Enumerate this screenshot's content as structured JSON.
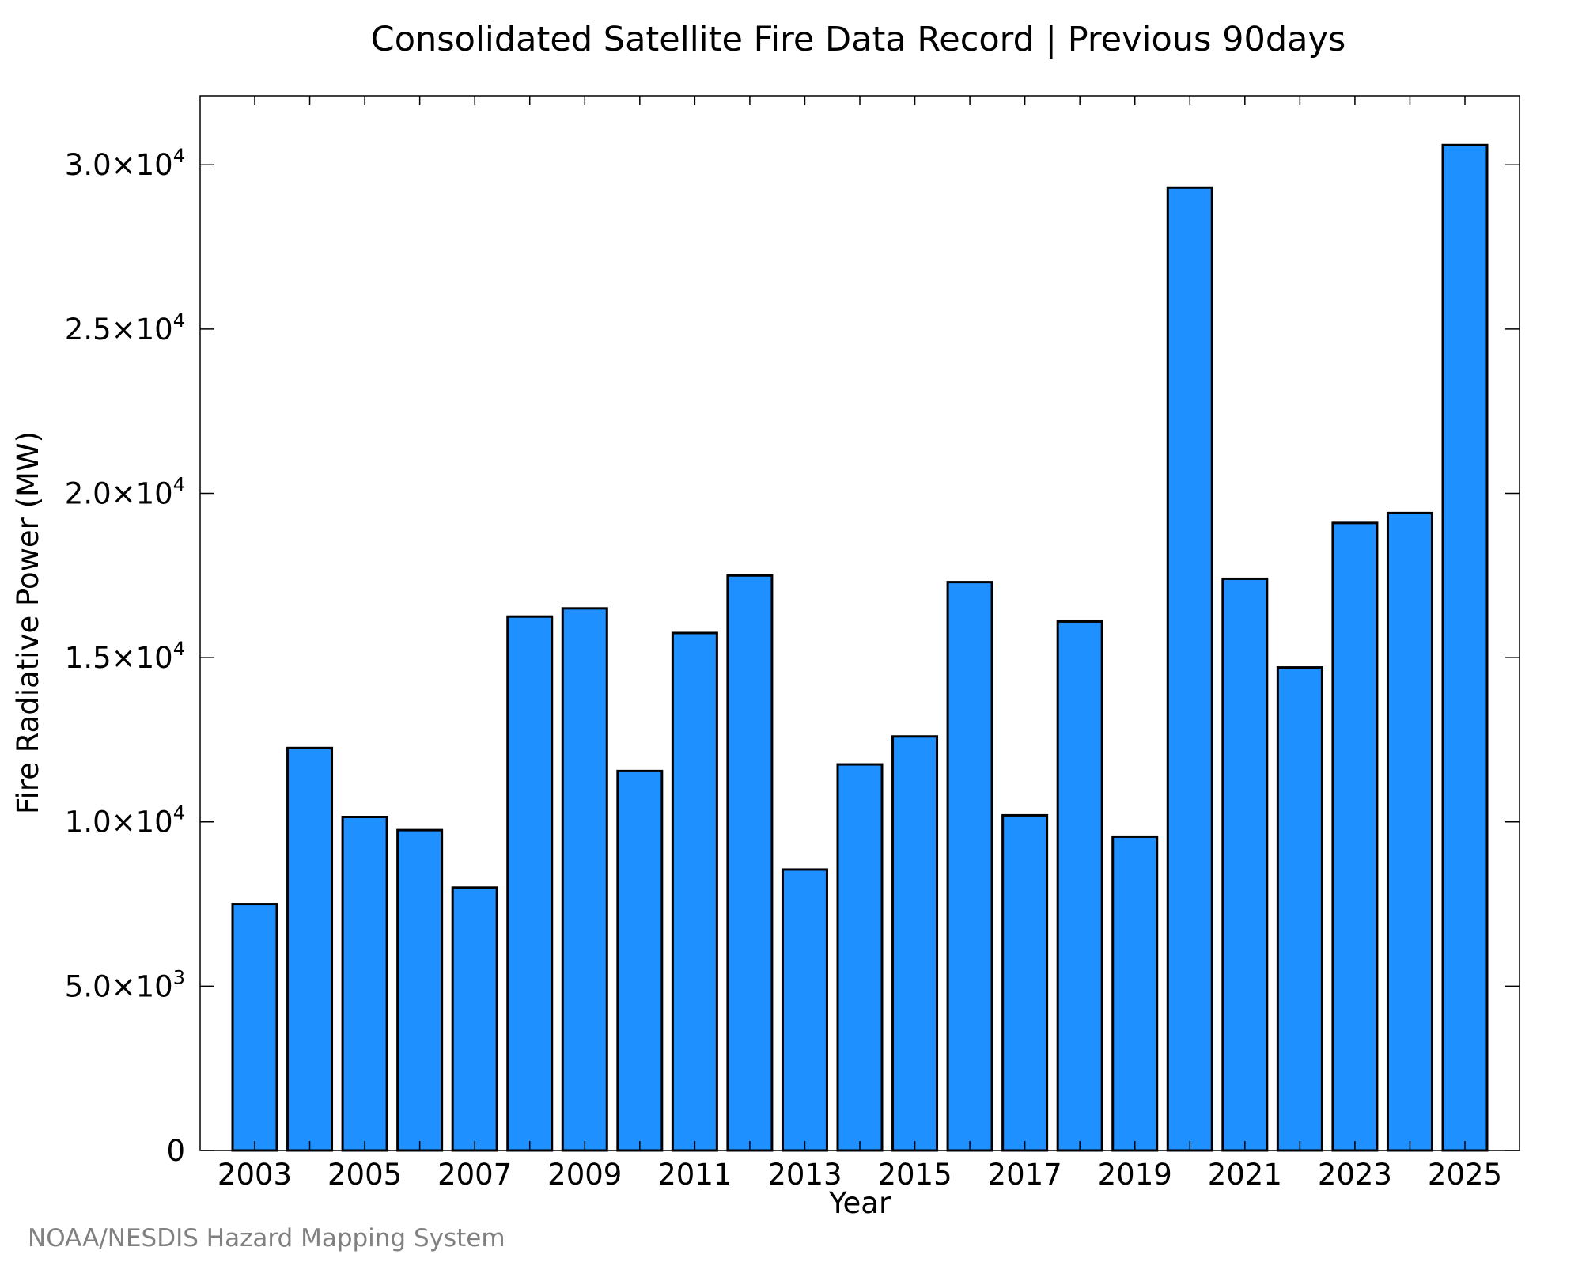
{
  "chart_data": {
    "type": "bar",
    "title": "Consolidated Satellite Fire Data Record | Previous 90days",
    "xlabel": "Year",
    "ylabel": "Fire Radiative Power (MW)",
    "categories": [
      "2003",
      "2004",
      "2005",
      "2006",
      "2007",
      "2008",
      "2009",
      "2010",
      "2011",
      "2012",
      "2013",
      "2014",
      "2015",
      "2016",
      "2017",
      "2018",
      "2019",
      "2020",
      "2021",
      "2022",
      "2023",
      "2024",
      "2025"
    ],
    "values": [
      7500,
      12250,
      10150,
      9750,
      8000,
      16250,
      16500,
      11550,
      15750,
      17500,
      8550,
      11750,
      12600,
      17300,
      10200,
      16100,
      9550,
      29300,
      17400,
      14700,
      19100,
      19400,
      30600
    ],
    "ylim": [
      0,
      32100
    ],
    "xticks": [
      "2003",
      "2005",
      "2007",
      "2009",
      "2011",
      "2013",
      "2015",
      "2017",
      "2019",
      "2021",
      "2023",
      "2025"
    ],
    "yticks": [
      {
        "value": 0,
        "mantissa": "0",
        "exponent": ""
      },
      {
        "value": 5000,
        "mantissa": "5.0×10",
        "exponent": "3"
      },
      {
        "value": 10000,
        "mantissa": "1.0×10",
        "exponent": "4"
      },
      {
        "value": 15000,
        "mantissa": "1.5×10",
        "exponent": "4"
      },
      {
        "value": 20000,
        "mantissa": "2.0×10",
        "exponent": "4"
      },
      {
        "value": 25000,
        "mantissa": "2.5×10",
        "exponent": "4"
      },
      {
        "value": 30000,
        "mantissa": "3.0×10",
        "exponent": "4"
      }
    ],
    "bar_color": "#1e90ff",
    "grid": false,
    "legend": "none"
  },
  "credit": "NOAA/NESDIS Hazard Mapping System"
}
